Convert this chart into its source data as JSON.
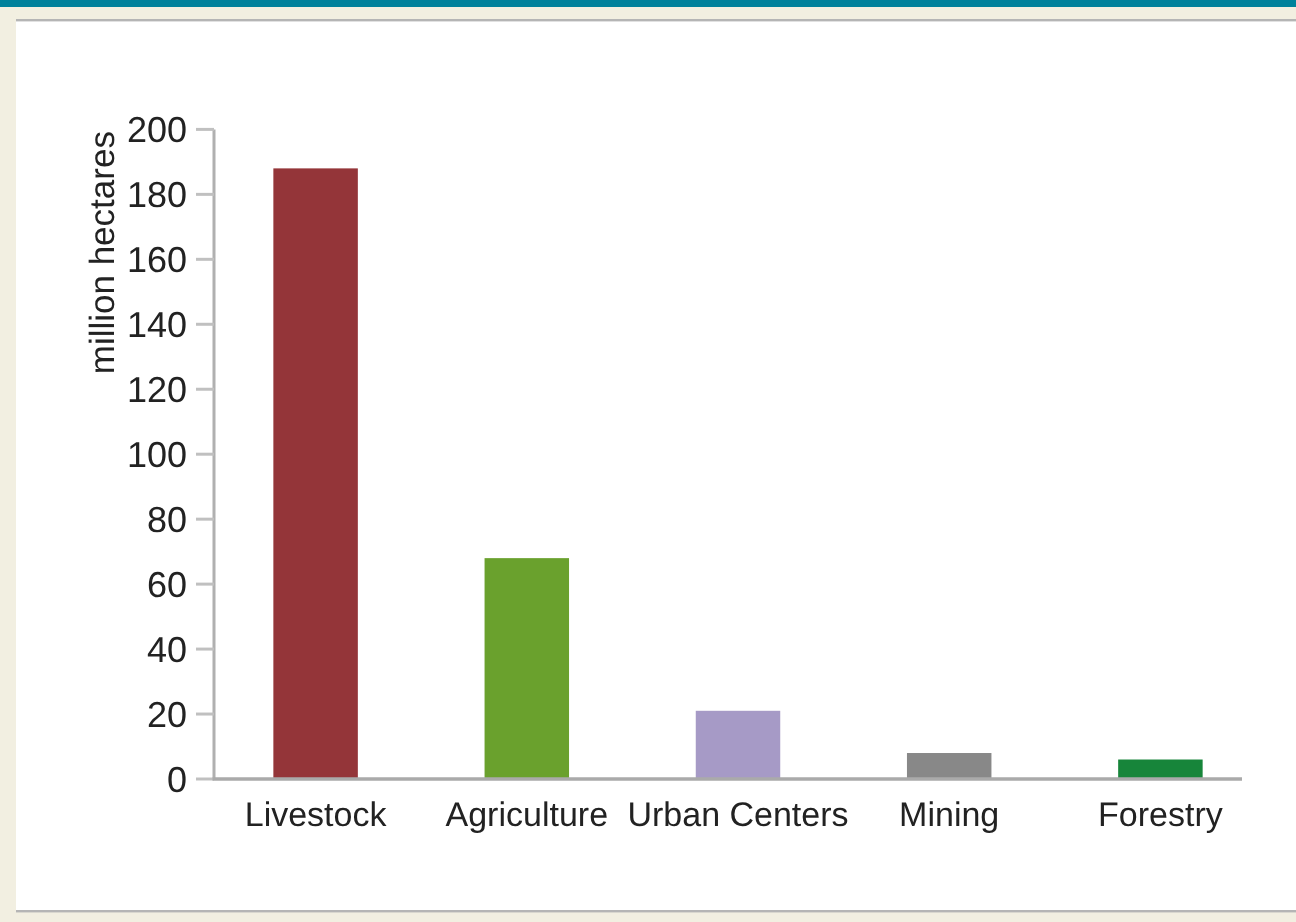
{
  "chart_data": {
    "type": "bar",
    "ylabel": "million hectares",
    "categories": [
      "Livestock",
      "Agriculture",
      "Urban Centers",
      "Mining",
      "Forestry"
    ],
    "values": [
      188,
      68,
      21,
      8,
      6
    ],
    "colors": [
      "#943539",
      "#6aa12d",
      "#a69ac6",
      "#888888",
      "#17853a"
    ],
    "ylim": [
      0,
      200
    ],
    "yticks": [
      0,
      20,
      40,
      60,
      80,
      100,
      120,
      140,
      160,
      180,
      200
    ]
  }
}
